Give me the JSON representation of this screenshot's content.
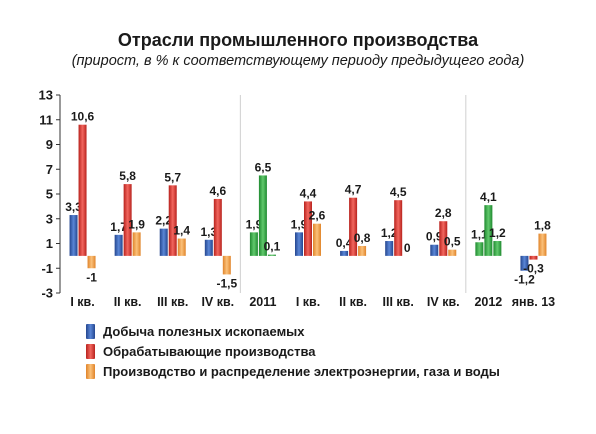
{
  "chart_data": {
    "type": "bar",
    "title": "Отрасли промышленного производства",
    "subtitle": "(прирост, в % к соответствующему периоду предыдущего года)",
    "categories": [
      "I кв.",
      "II кв.",
      "III кв.",
      "IV кв.",
      "2011",
      "I кв.",
      "II кв.",
      "III кв.",
      "IV кв.",
      "2012",
      "янв. 13"
    ],
    "ylim": [
      -3,
      13
    ],
    "yticks": [
      "13",
      "11",
      "9",
      "7",
      "5",
      "3",
      "1",
      "-1",
      "-3"
    ],
    "grid": false,
    "legend_position": "bottom",
    "series": [
      {
        "name": "Добыча полезных ископаемых",
        "color": "#3a63b4",
        "values": [
          3.3,
          1.7,
          2.2,
          1.3,
          1.9,
          1.9,
          0.4,
          1.2,
          0.9,
          1.1,
          -1.2
        ],
        "labels": [
          "3,3",
          "1,7",
          "2,2",
          "1,3",
          "1,9",
          "1,9",
          "0,4",
          "1,2",
          "0,9",
          "1,1",
          "-1,2"
        ]
      },
      {
        "name": "Обрабатывающие производства",
        "color": "#e23b34",
        "values": [
          10.6,
          5.8,
          5.7,
          4.6,
          6.5,
          4.4,
          4.7,
          4.5,
          2.8,
          4.1,
          -0.3
        ],
        "labels": [
          "10,6",
          "5,8",
          "5,7",
          "4,6",
          "6,5",
          "4,4",
          "4,7",
          "4,5",
          "2,8",
          "4,1",
          "-0,3"
        ]
      },
      {
        "name": "Производство и распределение электроэнергии, газа и воды",
        "color": "#f4a54a",
        "values": [
          -1,
          1.9,
          1.4,
          -1.5,
          0.1,
          2.6,
          0.8,
          0,
          0.5,
          1.2,
          1.8
        ],
        "labels": [
          "-1",
          "1,9",
          "1,4",
          "-1,5",
          "0,1",
          "2,6",
          "0,8",
          "0",
          "0,5",
          "1,2",
          "1,8"
        ]
      }
    ],
    "annual_color": "#3cab4a"
  }
}
